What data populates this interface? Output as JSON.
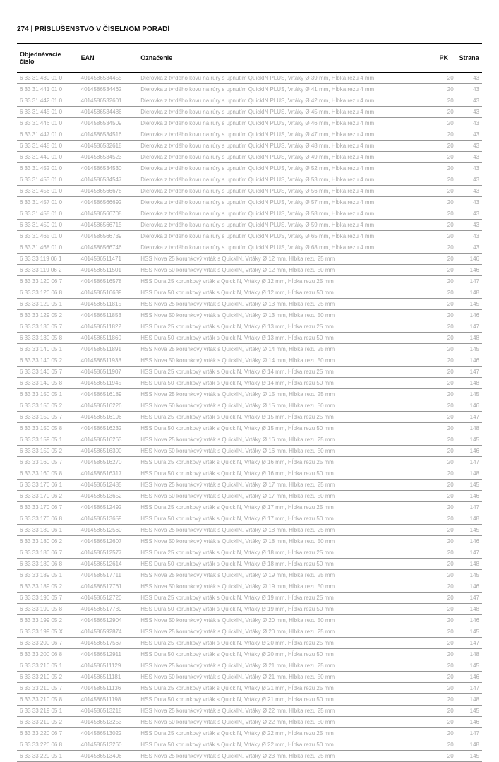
{
  "header": "274 | PRÍSLUŠENSTVO V ČÍSELNOM PORADÍ",
  "columns": {
    "order": "Objednávacie číslo",
    "ean": "EAN",
    "desc": "Označenie",
    "pk": "PK",
    "page": "Strana"
  },
  "rows": [
    {
      "o": "6 33 31 439 01 0",
      "e": "4014586534455",
      "d": "Dierovka z tvrdého kovu na rúry s upnutím QuickIN PLUS, Vrtáky Ø 39 mm, Hĺbka rezu 4 mm",
      "pk": "20",
      "pg": "43"
    },
    {
      "o": "6 33 31 441 01 0",
      "e": "4014586534462",
      "d": "Dierovka z tvrdého kovu na rúry s upnutím QuickIN PLUS, Vrtáky Ø 41 mm, Hĺbka rezu 4 mm",
      "pk": "20",
      "pg": "43"
    },
    {
      "o": "6 33 31 442 01 0",
      "e": "4014586532601",
      "d": "Dierovka z tvrdého kovu na rúry s upnutím QuickIN PLUS, Vrtáky Ø 42 mm, Hĺbka rezu 4 mm",
      "pk": "20",
      "pg": "43"
    },
    {
      "o": "6 33 31 445 01 0",
      "e": "4014586534486",
      "d": "Dierovka z tvrdého kovu na rúry s upnutím QuickIN PLUS, Vrtáky Ø 45 mm, Hĺbka rezu 4 mm",
      "pk": "20",
      "pg": "43"
    },
    {
      "o": "6 33 31 446 01 0",
      "e": "4014586534509",
      "d": "Dierovka z tvrdého kovu na rúry s upnutím QuickIN PLUS, Vrtáky Ø 46 mm, Hĺbka rezu 4 mm",
      "pk": "20",
      "pg": "43"
    },
    {
      "o": "6 33 31 447 01 0",
      "e": "4014586534516",
      "d": "Dierovka z tvrdého kovu na rúry s upnutím QuickIN PLUS, Vrtáky Ø 47 mm, Hĺbka rezu 4 mm",
      "pk": "20",
      "pg": "43"
    },
    {
      "o": "6 33 31 448 01 0",
      "e": "4014586532618",
      "d": "Dierovka z tvrdého kovu na rúry s upnutím QuickIN PLUS, Vrtáky Ø 48 mm, Hĺbka rezu 4 mm",
      "pk": "20",
      "pg": "43"
    },
    {
      "o": "6 33 31 449 01 0",
      "e": "4014586534523",
      "d": "Dierovka z tvrdého kovu na rúry s upnutím QuickIN PLUS, Vrtáky Ø 49 mm, Hĺbka rezu 4 mm",
      "pk": "20",
      "pg": "43"
    },
    {
      "o": "6 33 31 452 01 0",
      "e": "4014586534530",
      "d": "Dierovka z tvrdého kovu na rúry s upnutím QuickIN PLUS, Vrtáky Ø 52 mm, Hĺbka rezu 4 mm",
      "pk": "20",
      "pg": "43"
    },
    {
      "o": "6 33 31 453 01 0",
      "e": "4014586534547",
      "d": "Dierovka z tvrdého kovu na rúry s upnutím QuickIN PLUS, Vrtáky Ø 53 mm, Hĺbka rezu 4 mm",
      "pk": "20",
      "pg": "43"
    },
    {
      "o": "6 33 31 456 01 0",
      "e": "4014586566678",
      "d": "Dierovka z tvrdého kovu na rúry s upnutím QuickIN PLUS, Vrtáky Ø 56 mm, Hĺbka rezu 4 mm",
      "pk": "20",
      "pg": "43"
    },
    {
      "o": "6 33 31 457 01 0",
      "e": "4014586566692",
      "d": "Dierovka z tvrdého kovu na rúry s upnutím QuickIN PLUS, Vrtáky Ø 57 mm, Hĺbka rezu 4 mm",
      "pk": "20",
      "pg": "43"
    },
    {
      "o": "6 33 31 458 01 0",
      "e": "4014586566708",
      "d": "Dierovka z tvrdého kovu na rúry s upnutím QuickIN PLUS, Vrtáky Ø 58 mm, Hĺbka rezu 4 mm",
      "pk": "20",
      "pg": "43"
    },
    {
      "o": "6 33 31 459 01 0",
      "e": "4014586566715",
      "d": "Dierovka z tvrdého kovu na rúry s upnutím QuickIN PLUS, Vrtáky Ø 59 mm, Hĺbka rezu 4 mm",
      "pk": "20",
      "pg": "43"
    },
    {
      "o": "6 33 31 465 01 0",
      "e": "4014586566739",
      "d": "Dierovka z tvrdého kovu na rúry s upnutím QuickIN PLUS, Vrtáky Ø 65 mm, Hĺbka rezu 4 mm",
      "pk": "20",
      "pg": "43"
    },
    {
      "o": "6 33 31 468 01 0",
      "e": "4014586566746",
      "d": "Dierovka z tvrdého kovu na rúry s upnutím QuickIN PLUS, Vrtáky Ø 68 mm, Hĺbka rezu 4 mm",
      "pk": "20",
      "pg": "43"
    },
    {
      "o": "6 33 33 119 06 1",
      "e": "4014586511471",
      "d": "HSS Nova 25 korunkový vrták s QuickIN, Vrtáky Ø 12 mm, Hĺbka rezu 25 mm",
      "pk": "20",
      "pg": "146"
    },
    {
      "o": "6 33 33 119 06 2",
      "e": "4014586511501",
      "d": "HSS Nova 50 korunkový vrták s QuickIN, Vrtáky Ø 12 mm, Hĺbka rezu 50 mm",
      "pk": "20",
      "pg": "146"
    },
    {
      "o": "6 33 33 120 06 7",
      "e": "4014586516578",
      "d": "HSS Dura 25 korunkový vrták s QuickIN, Vrtáky Ø 12 mm, Hĺbka rezu 25 mm",
      "pk": "20",
      "pg": "147"
    },
    {
      "o": "6 33 33 120 06 8",
      "e": "4014586516639",
      "d": "HSS Dura 50 korunkový vrták s QuickIN, Vrtáky Ø 12 mm, Hĺbka rezu 50 mm",
      "pk": "20",
      "pg": "148"
    },
    {
      "o": "6 33 33 129 05 1",
      "e": "4014586511815",
      "d": "HSS Nova 25 korunkový vrták s QuickIN, Vrtáky Ø 13 mm, Hĺbka rezu 25 mm",
      "pk": "20",
      "pg": "145"
    },
    {
      "o": "6 33 33 129 05 2",
      "e": "4014586511853",
      "d": "HSS Nova 50 korunkový vrták s QuickIN, Vrtáky Ø 13 mm, Hĺbka rezu 50 mm",
      "pk": "20",
      "pg": "146"
    },
    {
      "o": "6 33 33 130 05 7",
      "e": "4014586511822",
      "d": "HSS Dura 25 korunkový vrták s QuickIN, Vrtáky Ø 13 mm, Hĺbka rezu 25 mm",
      "pk": "20",
      "pg": "147"
    },
    {
      "o": "6 33 33 130 05 8",
      "e": "4014586511860",
      "d": "HSS Dura 50 korunkový vrták s QuickIN, Vrtáky Ø 13 mm, Hĺbka rezu 50 mm",
      "pk": "20",
      "pg": "148"
    },
    {
      "o": "6 33 33 140 05 1",
      "e": "4014586511891",
      "d": "HSS Nova 25 korunkový vrták s QuickIN, Vrtáky Ø 14 mm, Hĺbka rezu 25 mm",
      "pk": "20",
      "pg": "145"
    },
    {
      "o": "6 33 33 140 05 2",
      "e": "4014586511938",
      "d": "HSS Nova 50 korunkový vrták s QuickIN, Vrtáky Ø 14 mm, Hĺbka rezu 50 mm",
      "pk": "20",
      "pg": "146"
    },
    {
      "o": "6 33 33 140 05 7",
      "e": "4014586511907",
      "d": "HSS Dura 25 korunkový vrták s QuickIN, Vrtáky Ø 14 mm, Hĺbka rezu 25 mm",
      "pk": "20",
      "pg": "147"
    },
    {
      "o": "6 33 33 140 05 8",
      "e": "4014586511945",
      "d": "HSS Dura 50 korunkový vrták s QuickIN, Vrtáky Ø 14 mm, Hĺbka rezu 50 mm",
      "pk": "20",
      "pg": "148"
    },
    {
      "o": "6 33 33 150 05 1",
      "e": "4014586516189",
      "d": "HSS Nova 25 korunkový vrták s QuickIN, Vrtáky Ø 15 mm, Hĺbka rezu 25 mm",
      "pk": "20",
      "pg": "145"
    },
    {
      "o": "6 33 33 150 05 2",
      "e": "4014586516226",
      "d": "HSS Nova 50 korunkový vrták s QuickIN, Vrtáky Ø 15 mm, Hĺbka rezu 50 mm",
      "pk": "20",
      "pg": "146"
    },
    {
      "o": "6 33 33 150 05 7",
      "e": "4014586516196",
      "d": "HSS Dura 25 korunkový vrták s QuickIN, Vrtáky Ø 15 mm, Hĺbka rezu 25 mm",
      "pk": "20",
      "pg": "147"
    },
    {
      "o": "6 33 33 150 05 8",
      "e": "4014586516232",
      "d": "HSS Dura 50 korunkový vrták s QuickIN, Vrtáky Ø 15 mm, Hĺbka rezu 50 mm",
      "pk": "20",
      "pg": "148"
    },
    {
      "o": "6 33 33 159 05 1",
      "e": "4014586516263",
      "d": "HSS Nova 25 korunkový vrták s QuickIN, Vrtáky Ø 16 mm, Hĺbka rezu 25 mm",
      "pk": "20",
      "pg": "145"
    },
    {
      "o": "6 33 33 159 05 2",
      "e": "4014586516300",
      "d": "HSS Nova 50 korunkový vrták s QuickIN, Vrtáky Ø 16 mm, Hĺbka rezu 50 mm",
      "pk": "20",
      "pg": "146"
    },
    {
      "o": "6 33 33 160 05 7",
      "e": "4014586516270",
      "d": "HSS Dura 25 korunkový vrták s QuickIN, Vrtáky Ø 16 mm, Hĺbka rezu 25 mm",
      "pk": "20",
      "pg": "147"
    },
    {
      "o": "6 33 33 160 05 8",
      "e": "4014586516317",
      "d": "HSS Dura 50 korunkový vrták s QuickIN, Vrtáky Ø 16 mm, Hĺbka rezu 50 mm",
      "pk": "20",
      "pg": "148"
    },
    {
      "o": "6 33 33 170 06 1",
      "e": "4014586512485",
      "d": "HSS Nova 25 korunkový vrták s QuickIN, Vrtáky Ø 17 mm, Hĺbka rezu 25 mm",
      "pk": "20",
      "pg": "145"
    },
    {
      "o": "6 33 33 170 06 2",
      "e": "4014586513652",
      "d": "HSS Nova 50 korunkový vrták s QuickIN, Vrtáky Ø 17 mm, Hĺbka rezu 50 mm",
      "pk": "20",
      "pg": "146"
    },
    {
      "o": "6 33 33 170 06 7",
      "e": "4014586512492",
      "d": "HSS Dura 25 korunkový vrták s QuickIN, Vrtáky Ø 17 mm, Hĺbka rezu 25 mm",
      "pk": "20",
      "pg": "147"
    },
    {
      "o": "6 33 33 170 06 8",
      "e": "4014586513659",
      "d": "HSS Dura 50 korunkový vrták s QuickIN, Vrtáky Ø 17 mm, Hĺbka rezu 50 mm",
      "pk": "20",
      "pg": "148"
    },
    {
      "o": "6 33 33 180 06 1",
      "e": "4014586512560",
      "d": "HSS Nova 25 korunkový vrták s QuickIN, Vrtáky Ø 18 mm, Hĺbka rezu 25 mm",
      "pk": "20",
      "pg": "145"
    },
    {
      "o": "6 33 33 180 06 2",
      "e": "4014586512607",
      "d": "HSS Nova 50 korunkový vrták s QuickIN, Vrtáky Ø 18 mm, Hĺbka rezu 50 mm",
      "pk": "20",
      "pg": "146"
    },
    {
      "o": "6 33 33 180 06 7",
      "e": "4014586512577",
      "d": "HSS Dura 25 korunkový vrták s QuickIN, Vrtáky Ø 18 mm, Hĺbka rezu 25 mm",
      "pk": "20",
      "pg": "147"
    },
    {
      "o": "6 33 33 180 06 8",
      "e": "4014586512614",
      "d": "HSS Dura 50 korunkový vrták s QuickIN, Vrtáky Ø 18 mm, Hĺbka rezu 50 mm",
      "pk": "20",
      "pg": "148"
    },
    {
      "o": "6 33 33 189 05 1",
      "e": "4014586517711",
      "d": "HSS Nova 25 korunkový vrták s QuickIN, Vrtáky Ø 19 mm, Hĺbka rezu 25 mm",
      "pk": "20",
      "pg": "145"
    },
    {
      "o": "6 33 33 189 05 2",
      "e": "4014586517761",
      "d": "HSS Nova 50 korunkový vrták s QuickIN, Vrtáky Ø 19 mm, Hĺbka rezu 50 mm",
      "pk": "20",
      "pg": "146"
    },
    {
      "o": "6 33 33 190 05 7",
      "e": "4014586512720",
      "d": "HSS Dura 25 korunkový vrták s QuickIN, Vrtáky Ø 19 mm, Hĺbka rezu 25 mm",
      "pk": "20",
      "pg": "147"
    },
    {
      "o": "6 33 33 190 05 8",
      "e": "4014586517789",
      "d": "HSS Dura 50 korunkový vrták s QuickIN, Vrtáky Ø 19 mm, Hĺbka rezu 50 mm",
      "pk": "20",
      "pg": "148"
    },
    {
      "o": "6 33 33 199 05 2",
      "e": "4014586512904",
      "d": "HSS Nova 50 korunkový vrták s QuickIN, Vrtáky Ø 20 mm, Hĺbka rezu 50 mm",
      "pk": "20",
      "pg": "146"
    },
    {
      "o": "6 33 33 199 05 X",
      "e": "4014586592874",
      "d": "HSS Nova 25 korunkový vrták s QuickIN, Vrtáky Ø 20 mm, Hĺbka rezu 25 mm",
      "pk": "20",
      "pg": "145"
    },
    {
      "o": "6 33 33 200 06 7",
      "e": "4014586517567",
      "d": "HSS Dura 25 korunkový vrták s QuickIN, Vrtáky Ø 20 mm, Hĺbka rezu 25 mm",
      "pk": "20",
      "pg": "147"
    },
    {
      "o": "6 33 33 200 06 8",
      "e": "4014586512911",
      "d": "HSS Dura 50 korunkový vrták s QuickIN, Vrtáky Ø 20 mm, Hĺbka rezu 50 mm",
      "pk": "20",
      "pg": "148"
    },
    {
      "o": "6 33 33 210 05 1",
      "e": "4014586511129",
      "d": "HSS Nova 25 korunkový vrták s QuickIN, Vrtáky Ø 21 mm, Hĺbka rezu 25 mm",
      "pk": "20",
      "pg": "145"
    },
    {
      "o": "6 33 33 210 05 2",
      "e": "4014586511181",
      "d": "HSS Nova 50 korunkový vrták s QuickIN, Vrtáky Ø 21 mm, Hĺbka rezu 50 mm",
      "pk": "20",
      "pg": "146"
    },
    {
      "o": "6 33 33 210 05 7",
      "e": "4014586511136",
      "d": "HSS Dura 25 korunkový vrták s QuickIN, Vrtáky Ø 21 mm, Hĺbka rezu 25 mm",
      "pk": "20",
      "pg": "147"
    },
    {
      "o": "6 33 33 210 05 8",
      "e": "4014586511198",
      "d": "HSS Dura 50 korunkový vrták s QuickIN, Vrtáky Ø 21 mm, Hĺbka rezu 50 mm",
      "pk": "20",
      "pg": "148"
    },
    {
      "o": "6 33 33 219 05 1",
      "e": "4014586513218",
      "d": "HSS Nova 25 korunkový vrták s QuickIN, Vrtáky Ø 22 mm, Hĺbka rezu 25 mm",
      "pk": "20",
      "pg": "145"
    },
    {
      "o": "6 33 33 219 05 2",
      "e": "4014586513253",
      "d": "HSS Nova 50 korunkový vrták s QuickIN, Vrtáky Ø 22 mm, Hĺbka rezu 50 mm",
      "pk": "20",
      "pg": "146"
    },
    {
      "o": "6 33 33 220 06 7",
      "e": "4014586513022",
      "d": "HSS Dura 25 korunkový vrták s QuickIN, Vrtáky Ø 22 mm, Hĺbka rezu 25 mm",
      "pk": "20",
      "pg": "147"
    },
    {
      "o": "6 33 33 220 06 8",
      "e": "4014586513260",
      "d": "HSS Dura 50 korunkový vrták s QuickIN, Vrtáky Ø 22 mm, Hĺbka rezu 50 mm",
      "pk": "20",
      "pg": "148"
    },
    {
      "o": "6 33 33 229 05 1",
      "e": "4014586513406",
      "d": "HSS Nova 25 korunkový vrták s QuickIN, Vrtáky Ø 23 mm, Hĺbka rezu 25 mm",
      "pk": "20",
      "pg": "145"
    }
  ]
}
